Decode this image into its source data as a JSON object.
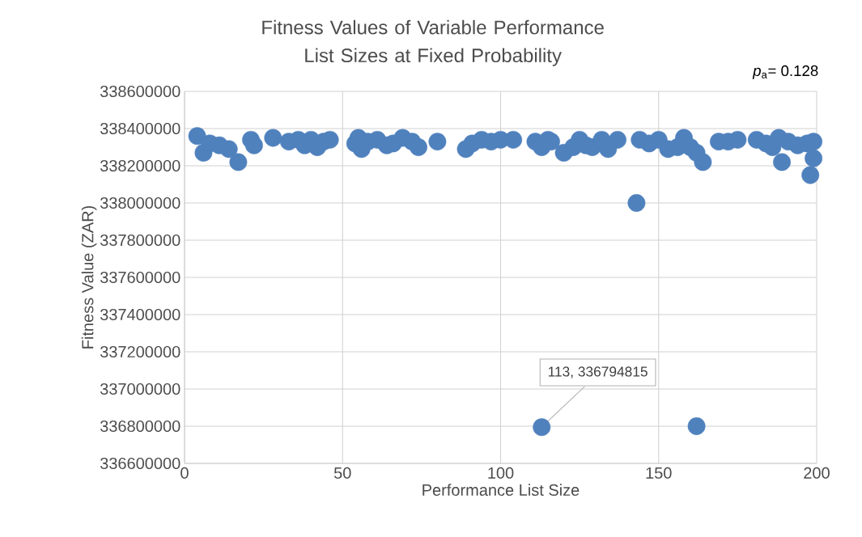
{
  "chart_data": {
    "type": "scatter",
    "title": "Fitness Values of Variable Performance List Sizes at Fixed Probability",
    "xlabel": "Performance List Size",
    "ylabel": "Fitness Value (ZAR)",
    "annotations": [
      "*p*$_{a}$= 0.128",
      {
        "text": "113, 336794815",
        "x": 113,
        "y": 336794815
      }
    ],
    "x": [
      4,
      6,
      8,
      11,
      14,
      17,
      21,
      22,
      28,
      33,
      36,
      38,
      40,
      42,
      44,
      46,
      54,
      55,
      56,
      58,
      61,
      64,
      66,
      69,
      72,
      74,
      80,
      89,
      91,
      94,
      97,
      100,
      104,
      111,
      113,
      113,
      115,
      116,
      120,
      123,
      125,
      127,
      129,
      132,
      134,
      137,
      143,
      144,
      147,
      150,
      153,
      156,
      158,
      160,
      162,
      162,
      164,
      169,
      172,
      175,
      181,
      184,
      186,
      188,
      189,
      191,
      194,
      197,
      198,
      199,
      199
    ],
    "values": [
      338360000,
      338270000,
      338320000,
      338310000,
      338290000,
      338220000,
      338340000,
      338310000,
      338350000,
      338330000,
      338340000,
      338310000,
      338340000,
      338300000,
      338330000,
      338340000,
      338320000,
      338350000,
      338290000,
      338330000,
      338340000,
      338310000,
      338320000,
      338350000,
      338330000,
      338300000,
      338330000,
      338290000,
      338320000,
      338340000,
      338330000,
      338340000,
      338340000,
      338330000,
      338300000,
      336794815,
      338340000,
      338330000,
      338270000,
      338300000,
      338340000,
      338310000,
      338300000,
      338340000,
      338290000,
      338340000,
      338000000,
      338340000,
      338320000,
      338340000,
      338290000,
      338300000,
      338350000,
      338300000,
      338270000,
      336800000,
      338220000,
      338330000,
      338330000,
      338340000,
      338340000,
      338320000,
      338300000,
      338350000,
      338220000,
      338330000,
      338310000,
      338320000,
      338150000,
      338240000,
      338330000
    ],
    "color": "#4f81bd",
    "marker": "circle",
    "grid": true,
    "xlim": [
      0,
      200
    ],
    "xticks": [
      0,
      50,
      100,
      150,
      200
    ],
    "ylim": [
      336600000,
      338600000
    ],
    "yticks": [
      336600000,
      336800000,
      337000000,
      337200000,
      337400000,
      337600000,
      337800000,
      338000000,
      338200000,
      338400000,
      338600000
    ]
  }
}
